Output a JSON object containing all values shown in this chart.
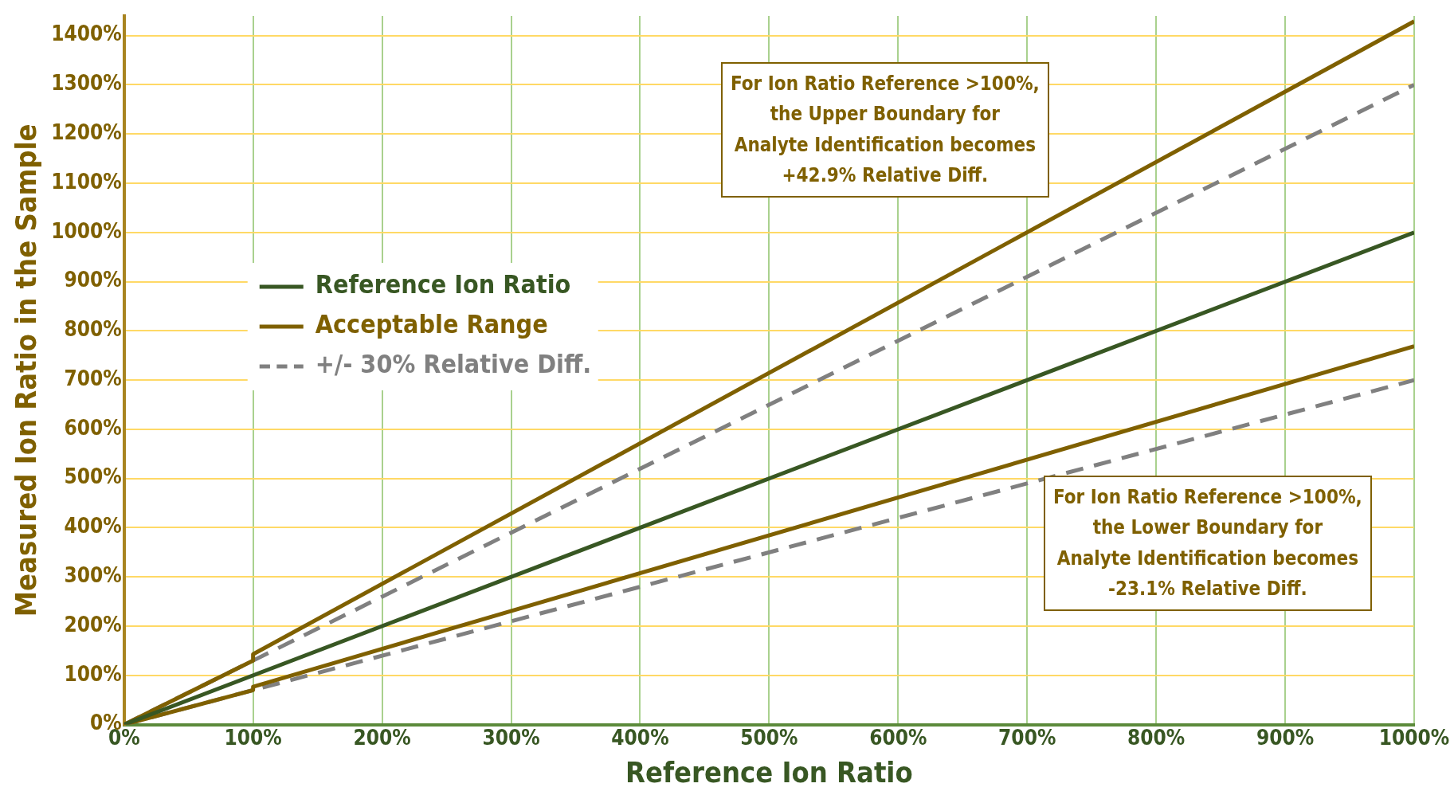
{
  "chart_data": {
    "type": "line",
    "xlabel": "Reference Ion Ratio",
    "ylabel": "Measured Ion Ratio in the Sample",
    "xlim": [
      0,
      1000
    ],
    "ylim": [
      0,
      1440
    ],
    "xticks": [
      {
        "value": 0,
        "label": "0%"
      },
      {
        "value": 100,
        "label": "100%"
      },
      {
        "value": 200,
        "label": "200%"
      },
      {
        "value": 300,
        "label": "300%"
      },
      {
        "value": 400,
        "label": "400%"
      },
      {
        "value": 500,
        "label": "500%"
      },
      {
        "value": 600,
        "label": "600%"
      },
      {
        "value": 700,
        "label": "700%"
      },
      {
        "value": 800,
        "label": "800%"
      },
      {
        "value": 900,
        "label": "900%"
      },
      {
        "value": 1000,
        "label": "1000%"
      }
    ],
    "yticks": [
      {
        "value": 0,
        "label": "0%"
      },
      {
        "value": 100,
        "label": "100%"
      },
      {
        "value": 200,
        "label": "200%"
      },
      {
        "value": 300,
        "label": "300%"
      },
      {
        "value": 400,
        "label": "400%"
      },
      {
        "value": 500,
        "label": "500%"
      },
      {
        "value": 600,
        "label": "600%"
      },
      {
        "value": 700,
        "label": "700%"
      },
      {
        "value": 800,
        "label": "800%"
      },
      {
        "value": 900,
        "label": "900%"
      },
      {
        "value": 1000,
        "label": "1000%"
      },
      {
        "value": 1100,
        "label": "1100%"
      },
      {
        "value": 1200,
        "label": "1200%"
      },
      {
        "value": 1300,
        "label": "1300%"
      },
      {
        "value": 1400,
        "label": "1400%"
      }
    ],
    "grid": true,
    "legend": "left",
    "marker": "none",
    "series": [
      {
        "name": "Reference Ion Ratio",
        "color": "#385723",
        "x": [
          0,
          1000
        ],
        "values": [
          0,
          1000
        ],
        "line_style": "solid"
      },
      {
        "name": "Acceptable Range",
        "color": "#7f6000",
        "x": [
          0,
          100,
          100,
          1000
        ],
        "values": [
          0,
          130,
          143,
          1429
        ],
        "line_style": "solid"
      },
      {
        "color": "#7f6000",
        "x": [
          0,
          100,
          100,
          1000
        ],
        "values": [
          0,
          70,
          77,
          769
        ],
        "line_style": "solid"
      },
      {
        "name": "+/- 30% Relative Diff.",
        "color": "#808080",
        "x": [
          0,
          1000
        ],
        "values": [
          0,
          1300
        ],
        "line_style": "dashed"
      },
      {
        "color": "#808080",
        "x": [
          0,
          1000
        ],
        "values": [
          0,
          700
        ],
        "line_style": "dashed"
      }
    ],
    "annotations": [
      "For Ion Ratio Reference >100%,\nthe Upper Boundary for\nAnalyte Identification becomes\n+42.9% Relative Diff.",
      "For Ion Ratio Reference >100%,\nthe Lower Boundary for\nAnalyte Identification becomes\n-23.1% Relative Diff."
    ]
  }
}
